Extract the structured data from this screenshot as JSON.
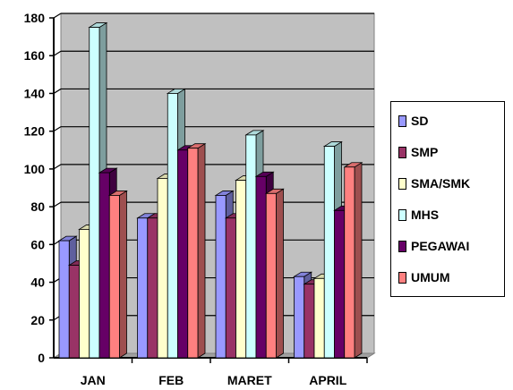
{
  "chart_data": {
    "type": "bar",
    "style": "3d-clustered-column",
    "categories": [
      "JAN",
      "FEB",
      "MARET",
      "APRIL"
    ],
    "series": [
      {
        "name": "SD",
        "color": "#9999ff",
        "values": [
          62,
          74,
          86,
          43
        ]
      },
      {
        "name": "SMP",
        "color": "#993366",
        "values": [
          49,
          74,
          74,
          39
        ]
      },
      {
        "name": "SMA/SMK",
        "color": "#ffffcc",
        "values": [
          68,
          95,
          94,
          42
        ]
      },
      {
        "name": "MHS",
        "color": "#ccffff",
        "values": [
          175,
          140,
          118,
          112
        ]
      },
      {
        "name": "PEGAWAI",
        "color": "#660066",
        "values": [
          98,
          110,
          96,
          78
        ]
      },
      {
        "name": "UMUM",
        "color": "#ff8080",
        "values": [
          86,
          111,
          87,
          101
        ]
      }
    ],
    "yticks": [
      0,
      20,
      40,
      60,
      80,
      100,
      120,
      140,
      160,
      180
    ],
    "ylim": [
      0,
      180
    ],
    "grid": true,
    "plot_background": "#c0c0c0",
    "legend_position": "right"
  }
}
